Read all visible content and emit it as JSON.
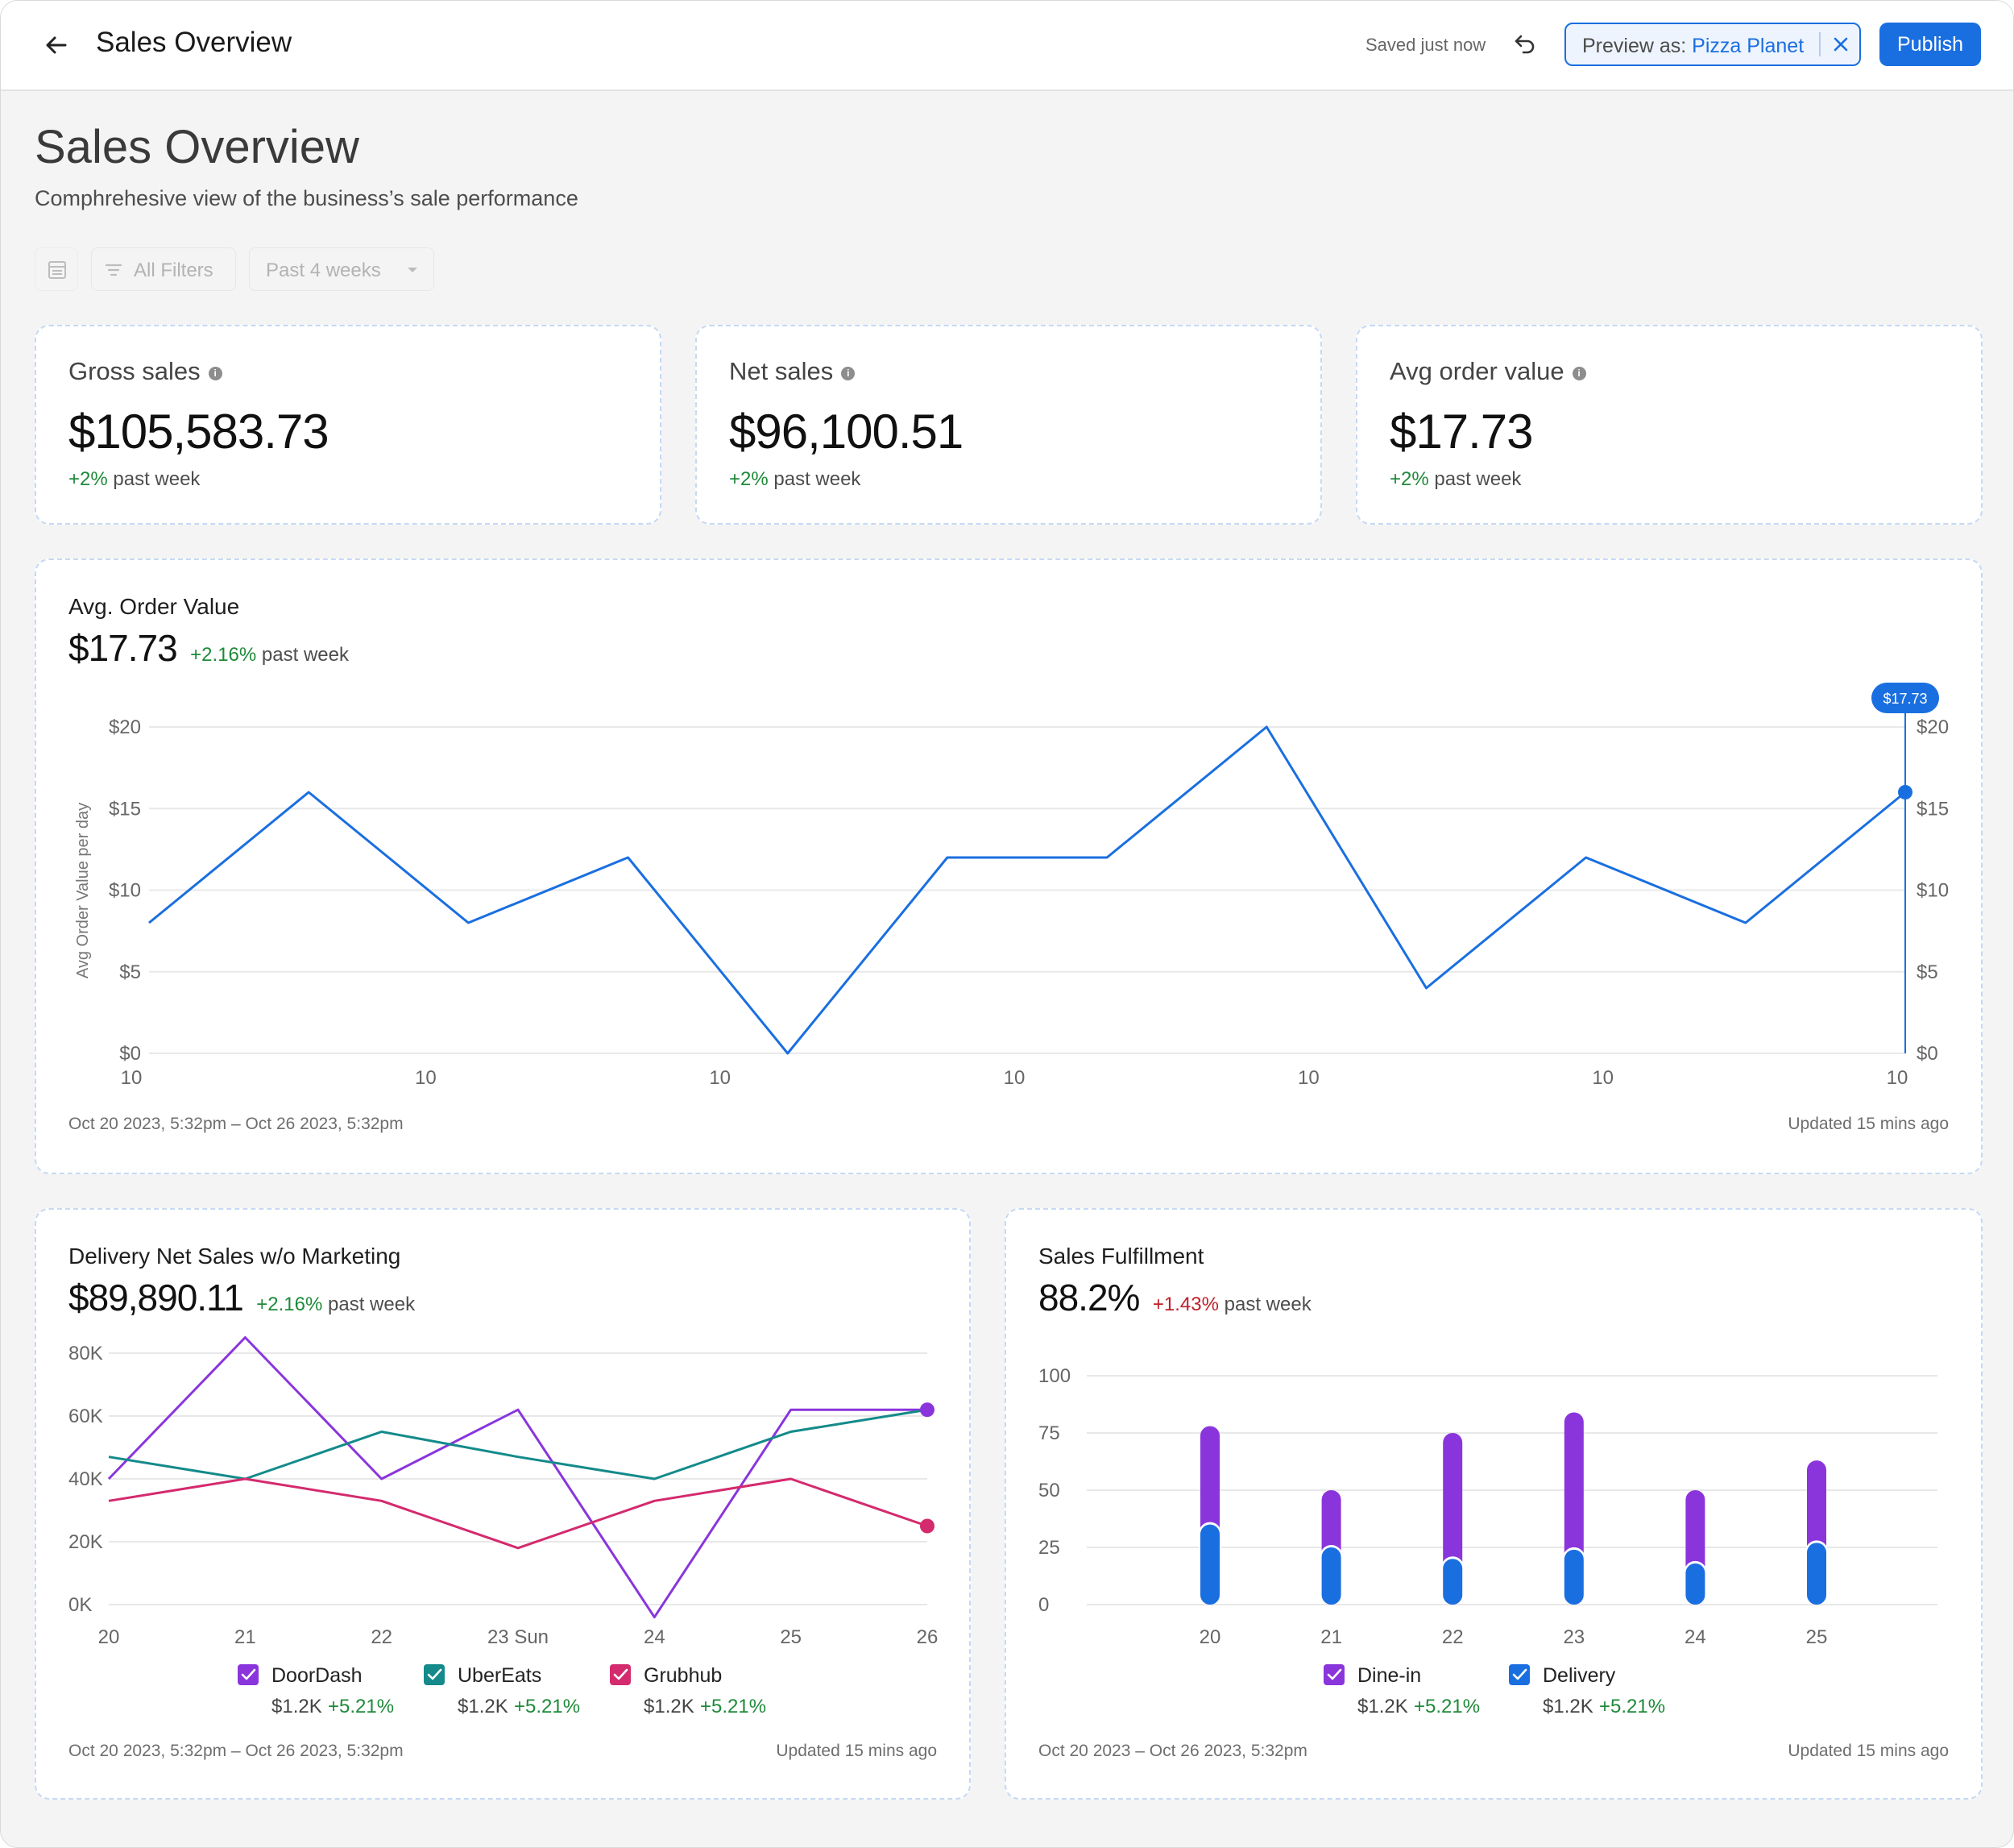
{
  "topbar": {
    "title": "Sales Overview",
    "saved_status": "Saved just now",
    "preview_label": "Preview as:",
    "preview_value": "Pizza Planet",
    "publish_label": "Publish",
    "accent": "#1a6fe0"
  },
  "page": {
    "title": "Sales Overview",
    "subtitle": "Comphrehesive view of the business’s sale performance"
  },
  "filters": {
    "all_filters_label": "All Filters",
    "range_label": "Past 4 weeks"
  },
  "kpis": [
    {
      "label": "Gross sales",
      "value": "$105,583.73",
      "change": "+2%",
      "change_suffix": "past week"
    },
    {
      "label": "Net sales",
      "value": "$96,100.51",
      "change": "+2%",
      "change_suffix": "past week"
    },
    {
      "label": "Avg order value",
      "value": "$17.73",
      "change": "+2%",
      "change_suffix": "past week"
    }
  ],
  "aov_card": {
    "title": "Avg. Order Value",
    "value": "$17.73",
    "change": "+2.16%",
    "change_suffix": "past week",
    "date_range": "Oct 20 2023, 5:32pm – Oct 26 2023, 5:32pm",
    "updated": "Updated 15 mins ago"
  },
  "delivery_card": {
    "title": "Delivery Net Sales w/o Marketing",
    "value": "$89,890.11",
    "change": "+2.16%",
    "change_suffix": "past week",
    "date_range": "Oct 20 2023, 5:32pm – Oct 26 2023, 5:32pm",
    "updated": "Updated 15 mins ago"
  },
  "fulfillment_card": {
    "title": "Sales Fulfillment",
    "value": "88.2%",
    "change": "+1.43%",
    "change_suffix": "past week",
    "date_range": "Oct 20 2023 – Oct 26 2023, 5:32pm",
    "updated": "Updated 15 mins ago"
  },
  "chart_data": [
    {
      "id": "aov",
      "type": "line",
      "ylabel": "Avg Order Value per day",
      "xtick_labels": [
        "10",
        "10",
        "10",
        "10",
        "10",
        "10",
        "10"
      ],
      "y_ticks": [
        "$0",
        "$5",
        "$10",
        "$15",
        "$20"
      ],
      "ylim": [
        0,
        20
      ],
      "grid": true,
      "series": [
        {
          "values": [
            8,
            16,
            8,
            12,
            0,
            12,
            12,
            20,
            4,
            12,
            8,
            16
          ],
          "color": "#1a6fe0"
        }
      ],
      "tooltip": "$17.73"
    },
    {
      "id": "delivery",
      "type": "line",
      "categories": [
        "20",
        "21",
        "22",
        "23 Sun",
        "24",
        "25",
        "26"
      ],
      "y_ticks": [
        "0K",
        "20K",
        "40K",
        "60K",
        "80K"
      ],
      "ylim": [
        0,
        80000
      ],
      "grid": true,
      "series": [
        {
          "name": "DoorDash",
          "color": "#8a35dc",
          "values": [
            40000,
            85000,
            40000,
            62000,
            -4000,
            62000,
            62000
          ],
          "stat": "$1.2K",
          "change": "+5.21%"
        },
        {
          "name": "UberEats",
          "color": "#148a8a",
          "values": [
            47000,
            40000,
            55000,
            47000,
            40000,
            55000,
            62000
          ],
          "stat": "$1.2K",
          "change": "+5.21%"
        },
        {
          "name": "Grubhub",
          "color": "#d42a6e",
          "values": [
            33000,
            40000,
            33000,
            18000,
            33000,
            40000,
            25000
          ],
          "stat": "$1.2K",
          "change": "+5.21%"
        }
      ]
    },
    {
      "id": "fulfillment",
      "type": "bar",
      "categories": [
        "20",
        "21",
        "22",
        "23",
        "24",
        "25"
      ],
      "y_ticks": [
        "0",
        "25",
        "50",
        "75",
        "100"
      ],
      "ylim": [
        0,
        100
      ],
      "grid": true,
      "series": [
        {
          "name": "Delivery",
          "color": "#1a6fe0",
          "values": [
            35,
            25,
            20,
            24,
            18,
            27
          ],
          "stat": "$1.2K",
          "change": "+5.21%"
        },
        {
          "name": "Dine-in",
          "color": "#8a35dc",
          "values": [
            43,
            25,
            55,
            60,
            32,
            36
          ],
          "stat": "$1.2K",
          "change": "+5.21%"
        }
      ]
    }
  ]
}
